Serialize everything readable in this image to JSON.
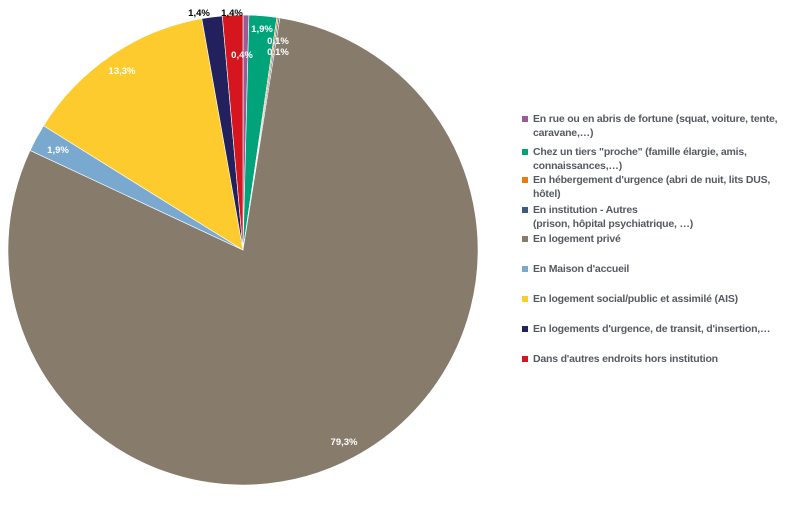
{
  "chart_data": {
    "type": "pie",
    "title": "",
    "slices": [
      {
        "name": "En rue ou en abris de fortune  (squat, voiture, tente, caravane,…)",
        "value": 0.4,
        "label": "0,4%",
        "color": "#9a5b98"
      },
      {
        "name": "Chez un tiers \"proche\" (famille élargie, amis, connaissances,…)",
        "value": 1.9,
        "label": "1,9%",
        "color": "#00a37a"
      },
      {
        "name": "En hébergement d'urgence (abri de nuit, lits DUS, hôtel)",
        "value": 0.1,
        "label": "0,1%",
        "color": "#e87c0e"
      },
      {
        "name": "En institution - Autres\n(prison, hôpital psychiatrique, …)",
        "value": 0.1,
        "label": "0,1%",
        "color": "#3d5a80"
      },
      {
        "name": "En logement privé",
        "value": 79.3,
        "label": "79,3%",
        "color": "#877b6b"
      },
      {
        "name": "En Maison d'accueil",
        "value": 1.9,
        "label": "1,9%",
        "color": "#79a9cf"
      },
      {
        "name": "En logement social/public et assimilé (AIS)",
        "value": 13.3,
        "label": "13,3%",
        "color": "#fdcb2e"
      },
      {
        "name": "En logements d'urgence, de transit, d'insertion,…",
        "value": 1.4,
        "label": "1,4%",
        "color": "#23215d"
      },
      {
        "name": "Dans d'autres endroits hors institution",
        "value": 1.4,
        "label": "1,4%",
        "color": "#d6161e"
      }
    ],
    "legend_position": "right"
  }
}
